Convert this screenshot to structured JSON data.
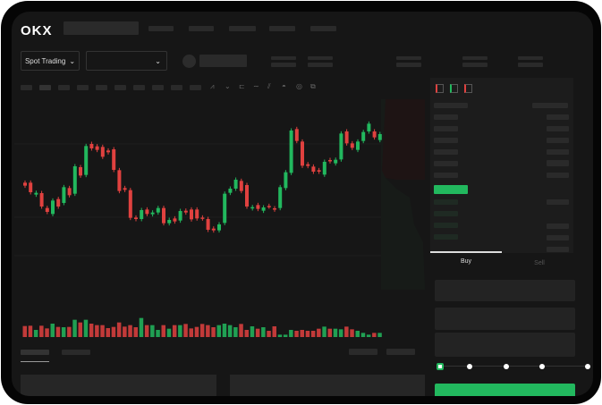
{
  "header": {
    "logo": "OKX"
  },
  "toolbar": {
    "market_type": "Spot Trading",
    "market_type_icon": "chevron-down-icon",
    "pair_select_icon": "chevron-down-icon",
    "tools": [
      "line-chart-icon",
      "indicator-icon",
      "template-icon",
      "trend-icon",
      "draw-icon",
      "camera-icon",
      "settings-icon",
      "fullscreen-icon"
    ]
  },
  "orderbook": {
    "view_icons": [
      "both-sides-icon",
      "bids-icon",
      "asks-icon"
    ]
  },
  "trade": {
    "buy_tab": "Buy",
    "sell_tab": "Sell",
    "active_tab": "Buy",
    "slider_percent": 0,
    "slider_marks": [
      0,
      25,
      50,
      75,
      100
    ]
  },
  "colors": {
    "up": "#22b85e",
    "down": "#e0413f",
    "background": "#161616",
    "buy_button": "#22b85e"
  },
  "chart_data": {
    "type": "candlestick",
    "candles_open_close": [
      [
        50,
        48
      ],
      [
        50,
        43.6
      ],
      [
        42,
        43.2
      ],
      [
        43,
        34
      ],
      [
        33,
        30.4
      ],
      [
        29,
        38
      ],
      [
        39,
        34
      ],
      [
        36.4,
        47
      ],
      [
        46.4,
        41.6
      ],
      [
        42.6,
        61
      ],
      [
        60.4,
        54.8
      ],
      [
        55.2,
        74.6
      ],
      [
        76,
        73
      ],
      [
        74.4,
        72
      ],
      [
        74,
        67.4
      ],
      [
        71.6,
        70.4
      ],
      [
        72.4,
        58.6
      ],
      [
        58.4,
        44.4
      ],
      [
        46.4,
        45.2
      ],
      [
        45,
        26.4
      ],
      [
        26.6,
        25.6
      ],
      [
        25.6,
        31.6
      ],
      [
        32,
        29
      ],
      [
        28.8,
        30
      ],
      [
        30,
        33
      ],
      [
        33,
        22.8
      ],
      [
        22.8,
        25
      ],
      [
        26,
        24
      ],
      [
        24.6,
        31
      ],
      [
        31.2,
        30
      ],
      [
        32,
        25.4
      ],
      [
        32,
        26
      ],
      [
        26.6,
        26
      ],
      [
        25.6,
        18.4
      ],
      [
        19.2,
        18
      ],
      [
        18,
        22
      ],
      [
        23,
        42.6
      ],
      [
        43.2,
        46
      ],
      [
        46,
        52
      ],
      [
        51.2,
        44.4
      ],
      [
        48.4,
        34
      ],
      [
        32.8,
        33.6
      ],
      [
        35,
        32.4
      ],
      [
        31.2,
        33.4
      ],
      [
        34.4,
        34
      ],
      [
        32.8,
        32
      ],
      [
        33,
        47
      ],
      [
        46.4,
        57
      ],
      [
        56.6,
        85
      ],
      [
        86,
        78
      ],
      [
        77.6,
        61.4
      ],
      [
        62.4,
        61.2
      ],
      [
        60.8,
        57.4
      ],
      [
        58.4,
        57.4
      ],
      [
        55.4,
        64
      ],
      [
        65.2,
        64.4
      ],
      [
        63,
        65.4
      ],
      [
        65.6,
        83
      ],
      [
        84.4,
        76.4
      ],
      [
        76.4,
        73.4
      ],
      [
        72,
        77.6
      ],
      [
        78,
        84
      ],
      [
        84.4,
        89.6
      ],
      [
        84.4,
        80.4
      ],
      [
        78.6,
        82.6
      ]
    ],
    "volume": [
      37,
      38,
      24,
      38,
      29,
      45,
      34,
      33,
      34,
      58,
      49,
      58,
      45,
      40,
      40,
      30,
      34,
      49,
      35,
      40,
      33,
      64,
      40,
      40,
      24,
      40,
      28,
      40,
      40,
      44,
      29,
      34,
      44,
      40,
      33,
      40,
      45,
      40,
      33,
      44,
      24,
      36,
      28,
      33,
      21,
      36,
      8,
      8,
      24,
      21,
      24,
      21,
      21,
      28,
      35,
      28,
      28,
      26,
      35,
      26,
      21,
      14,
      8,
      14,
      14
    ]
  }
}
